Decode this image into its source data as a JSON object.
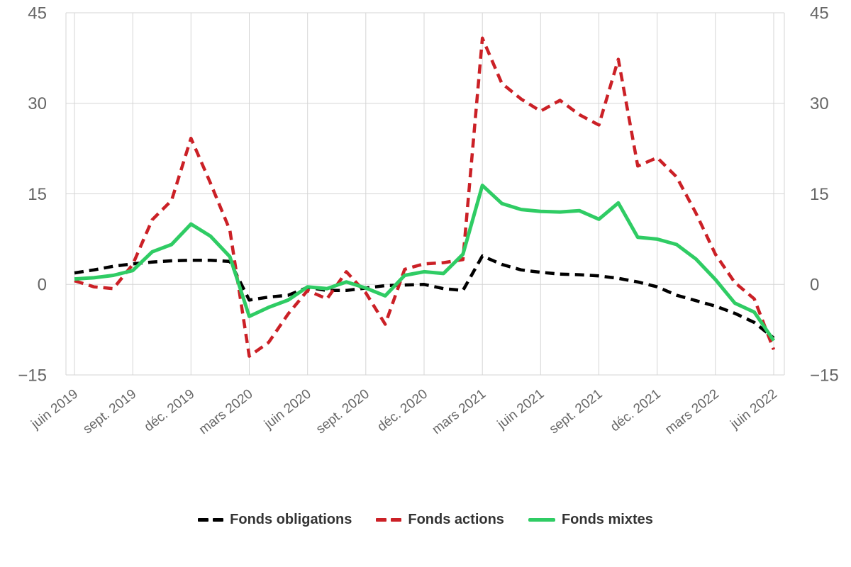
{
  "chart_data": {
    "type": "line",
    "title": "",
    "n_points": 37,
    "x_tick_month_step": 3,
    "x_tick_labels": [
      "juin 2019",
      "sept. 2019",
      "déc. 2019",
      "mars 2020",
      "juin 2020",
      "sept. 2020",
      "déc. 2020",
      "mars 2021",
      "juin 2021",
      "sept. 2021",
      "déc. 2021",
      "mars 2022",
      "juin 2022"
    ],
    "ylim": [
      -15,
      45
    ],
    "y_ticks": [
      {
        "value": 45,
        "label": "45"
      },
      {
        "value": 30,
        "label": "30"
      },
      {
        "value": 15,
        "label": "15"
      },
      {
        "value": 0,
        "label": "0"
      },
      {
        "value": -15,
        "label": "−15"
      }
    ],
    "y_axis_sides": "both",
    "grid": true,
    "legend_position": "bottom",
    "series": [
      {
        "name": "Fonds obligations",
        "color": "#000000",
        "dashed": true,
        "values": [
          1.9,
          2.4,
          3.0,
          3.4,
          3.7,
          3.9,
          4.0,
          4.0,
          3.8,
          -2.6,
          -2.1,
          -1.8,
          -0.5,
          -1.0,
          -1.0,
          -0.6,
          -0.2,
          -0.1,
          0.0,
          -0.7,
          -1.0,
          4.7,
          3.3,
          2.4,
          2.0,
          1.7,
          1.6,
          1.4,
          1.0,
          0.4,
          -0.4,
          -1.8,
          -2.7,
          -3.6,
          -4.8,
          -6.3,
          -8.9
        ]
      },
      {
        "name": "Fonds actions",
        "color": "#cb2026",
        "dashed": true,
        "values": [
          0.6,
          -0.4,
          -0.7,
          3.3,
          10.7,
          13.9,
          24.2,
          16.8,
          9.0,
          -11.9,
          -9.6,
          -4.9,
          -1.0,
          -2.4,
          2.1,
          -1.4,
          -6.6,
          2.5,
          3.4,
          3.6,
          4.1,
          40.8,
          33.3,
          30.7,
          28.7,
          30.5,
          28.1,
          26.4,
          37.3,
          19.6,
          21.0,
          17.8,
          11.8,
          5.0,
          0.3,
          -2.4,
          -10.8
        ]
      },
      {
        "name": "Fonds mixtes",
        "color": "#2fcc64",
        "dashed": false,
        "values": [
          0.9,
          1.1,
          1.5,
          2.3,
          5.4,
          6.6,
          10.0,
          8.0,
          4.6,
          -5.3,
          -3.8,
          -2.6,
          -0.4,
          -0.7,
          0.4,
          -0.6,
          -1.9,
          1.5,
          2.1,
          1.8,
          5.0,
          16.4,
          13.4,
          12.4,
          12.1,
          12.0,
          12.2,
          10.8,
          13.5,
          7.8,
          7.5,
          6.6,
          4.2,
          0.8,
          -3.1,
          -4.6,
          -9.3
        ]
      }
    ]
  },
  "colors": {
    "background": "#ffffff",
    "grid": "#d5d5d5",
    "axis_label": "#666666",
    "legend_text": "#333333"
  }
}
